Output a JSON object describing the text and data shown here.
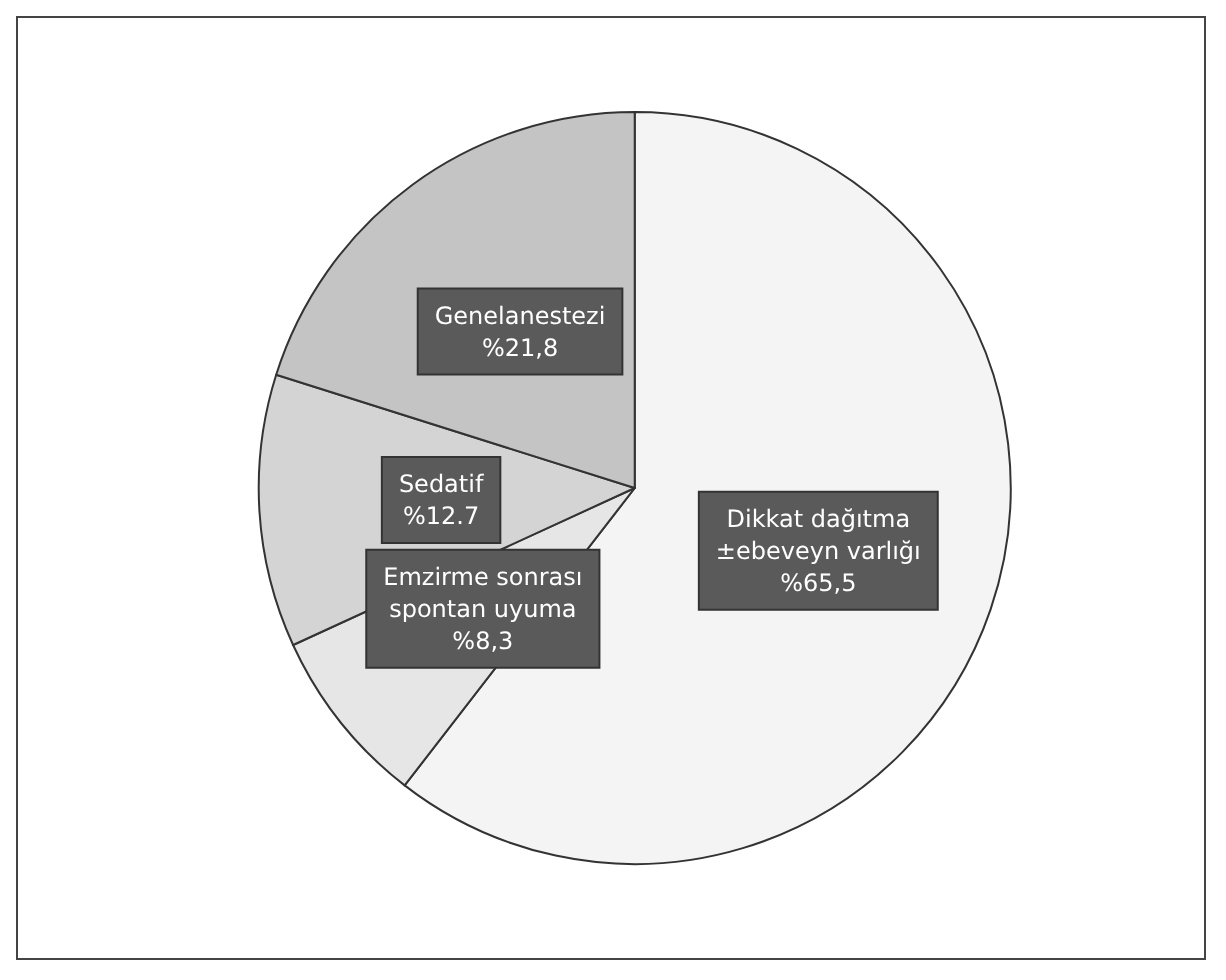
{
  "chart_data": {
    "type": "pie",
    "categories": [
      "Dikkat dağıtma\n±ebeveyn varlığı",
      "Emzirme sonrası\nspontan uyuma",
      "Sedatif",
      "Genelanestezi"
    ],
    "values": [
      65.5,
      8.3,
      12.7,
      21.8
    ],
    "value_labels": [
      "%65,5",
      "%8,3",
      "%12.7",
      "%21,8"
    ],
    "colors": [
      "#f4f4f4",
      "#e6e6e6",
      "#d4d4d4",
      "#c4c4c4"
    ],
    "legend": false
  }
}
